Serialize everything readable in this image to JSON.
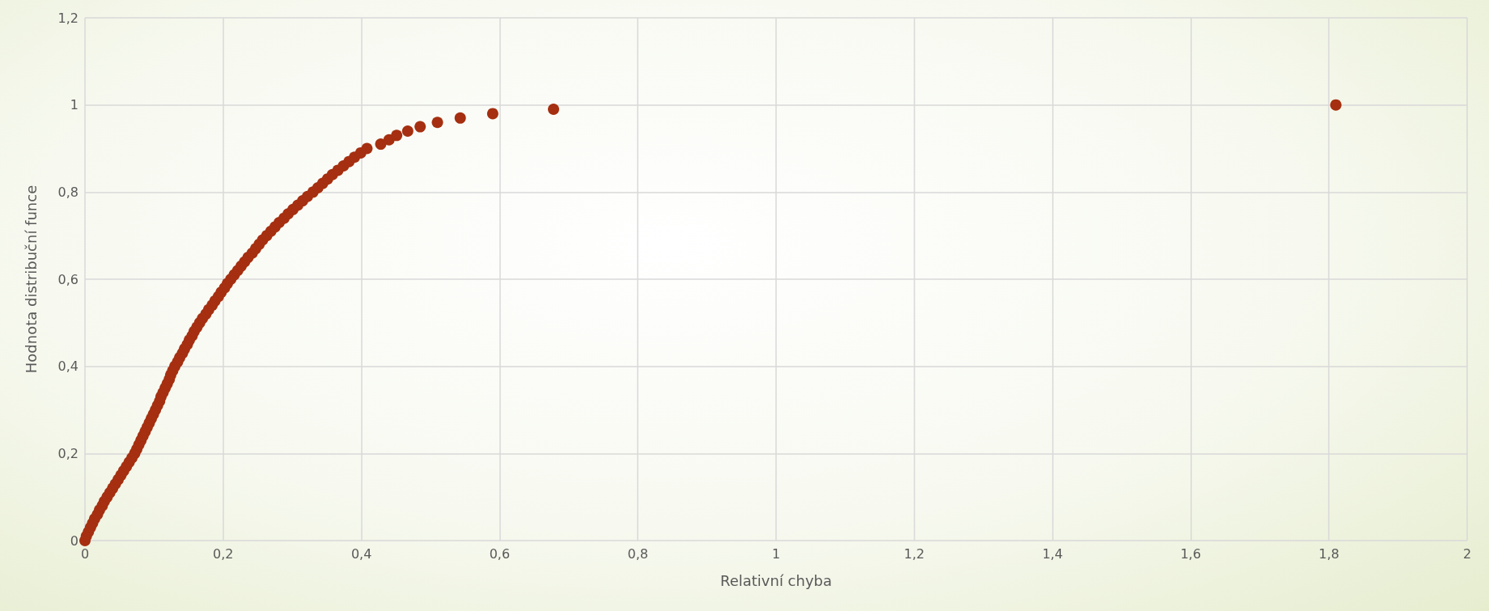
{
  "chart_data": {
    "type": "scatter",
    "xlabel": "Relativní chyba",
    "ylabel": "Hodnota distribuční funce",
    "xlim": [
      0,
      2
    ],
    "xticks": [
      {
        "value": 0,
        "label": "0"
      },
      {
        "value": 0.2,
        "label": "0,2"
      },
      {
        "value": 0.4,
        "label": "0,4"
      },
      {
        "value": 0.6,
        "label": "0,6"
      },
      {
        "value": 0.8,
        "label": "0,8"
      },
      {
        "value": 1,
        "label": "1"
      },
      {
        "value": 1.2,
        "label": "1,2"
      },
      {
        "value": 1.4,
        "label": "1,4"
      },
      {
        "value": 1.6,
        "label": "1,6"
      },
      {
        "value": 1.8,
        "label": "1,8"
      },
      {
        "value": 2,
        "label": "2"
      }
    ],
    "ylim": [
      0,
      1.2
    ],
    "yticks": [
      {
        "value": 0,
        "label": "0"
      },
      {
        "value": 0.2,
        "label": "0,2"
      },
      {
        "value": 0.4,
        "label": "0,4"
      },
      {
        "value": 0.6,
        "label": "0,6"
      },
      {
        "value": 0.8,
        "label": "0,8"
      },
      {
        "value": 1,
        "label": "1"
      },
      {
        "value": 1.2,
        "label": "1,2"
      }
    ],
    "grid": true,
    "marker": "circle",
    "series": [
      {
        "color": "#a52f10",
        "x": [
          0,
          0.002,
          0.005,
          0.008,
          0.011,
          0.014,
          0.018,
          0.021,
          0.025,
          0.028,
          0.032,
          0.036,
          0.04,
          0.044,
          0.048,
          0.052,
          0.056,
          0.06,
          0.064,
          0.068,
          0.072,
          0.075,
          0.078,
          0.081,
          0.084,
          0.087,
          0.09,
          0.093,
          0.096,
          0.099,
          0.102,
          0.105,
          0.108,
          0.11,
          0.113,
          0.116,
          0.119,
          0.122,
          0.124,
          0.127,
          0.13,
          0.134,
          0.137,
          0.141,
          0.144,
          0.148,
          0.151,
          0.155,
          0.158,
          0.162,
          0.166,
          0.17,
          0.175,
          0.179,
          0.184,
          0.188,
          0.193,
          0.197,
          0.202,
          0.206,
          0.211,
          0.216,
          0.221,
          0.226,
          0.231,
          0.236,
          0.242,
          0.247,
          0.252,
          0.257,
          0.263,
          0.269,
          0.275,
          0.281,
          0.288,
          0.294,
          0.301,
          0.308,
          0.315,
          0.322,
          0.33,
          0.337,
          0.344,
          0.351,
          0.358,
          0.366,
          0.374,
          0.382,
          0.39,
          0.399,
          0.408,
          0.428,
          0.44,
          0.451,
          0.467,
          0.485,
          0.51,
          0.543,
          0.59,
          0.678,
          1.81
        ],
        "values": [
          0,
          0.01,
          0.02,
          0.03,
          0.04,
          0.05,
          0.06,
          0.07,
          0.08,
          0.09,
          0.1,
          0.11,
          0.12,
          0.13,
          0.14,
          0.15,
          0.16,
          0.17,
          0.18,
          0.19,
          0.2,
          0.21,
          0.22,
          0.23,
          0.24,
          0.25,
          0.26,
          0.27,
          0.28,
          0.29,
          0.3,
          0.31,
          0.32,
          0.33,
          0.34,
          0.35,
          0.36,
          0.37,
          0.38,
          0.39,
          0.4,
          0.41,
          0.42,
          0.43,
          0.44,
          0.45,
          0.46,
          0.47,
          0.48,
          0.49,
          0.5,
          0.51,
          0.52,
          0.53,
          0.54,
          0.55,
          0.56,
          0.57,
          0.58,
          0.59,
          0.6,
          0.61,
          0.62,
          0.63,
          0.64,
          0.65,
          0.66,
          0.67,
          0.68,
          0.69,
          0.7,
          0.71,
          0.72,
          0.73,
          0.74,
          0.75,
          0.76,
          0.77,
          0.78,
          0.79,
          0.8,
          0.81,
          0.82,
          0.83,
          0.84,
          0.85,
          0.86,
          0.87,
          0.88,
          0.89,
          0.9,
          0.91,
          0.92,
          0.93,
          0.94,
          0.95,
          0.96,
          0.97,
          0.98,
          0.99,
          1
        ]
      }
    ]
  }
}
